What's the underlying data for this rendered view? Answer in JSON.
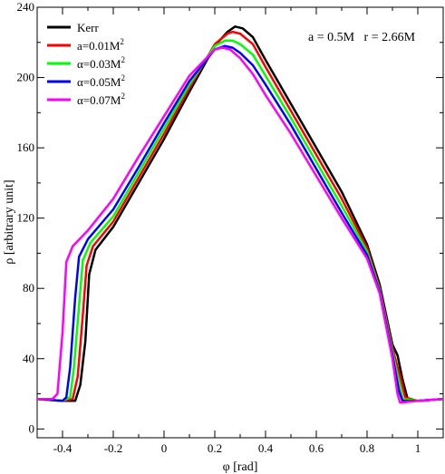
{
  "chart_data": {
    "type": "line",
    "xlabel": "φ [rad]",
    "ylabel": "ρ [arbitrary unit]",
    "xlim": [
      -0.5,
      1.1
    ],
    "ylim": [
      -5,
      240
    ],
    "xticks": [
      -0.4,
      -0.2,
      0,
      0.2,
      0.4,
      0.6,
      0.8,
      1
    ],
    "xtick_labels": [
      "-0.4",
      "-0.2",
      "0",
      "0.2",
      "0.4",
      "0.6",
      "0.8",
      "1"
    ],
    "yticks": [
      0,
      40,
      80,
      120,
      160,
      200,
      240
    ],
    "ytick_labels": [
      "0",
      "40",
      "80",
      "120",
      "160",
      "200",
      "240"
    ],
    "grid": false,
    "legend_position": "top-left",
    "annotation": "a = 0.5M   r = 2.66M",
    "series": [
      {
        "name": "Kerr",
        "name_sup": "",
        "color": "#000000",
        "points": [
          [
            -0.5,
            17
          ],
          [
            -0.4,
            16
          ],
          [
            -0.35,
            16
          ],
          [
            -0.33,
            25
          ],
          [
            -0.31,
            50
          ],
          [
            -0.295,
            88
          ],
          [
            -0.27,
            102
          ],
          [
            -0.2,
            115
          ],
          [
            -0.1,
            140
          ],
          [
            0,
            165
          ],
          [
            0.1,
            192
          ],
          [
            0.2,
            218
          ],
          [
            0.25,
            226
          ],
          [
            0.28,
            229
          ],
          [
            0.31,
            228
          ],
          [
            0.35,
            223
          ],
          [
            0.4,
            210
          ],
          [
            0.5,
            185
          ],
          [
            0.6,
            160
          ],
          [
            0.7,
            135
          ],
          [
            0.8,
            105
          ],
          [
            0.85,
            82
          ],
          [
            0.9,
            48
          ],
          [
            0.92,
            42
          ],
          [
            0.94,
            28
          ],
          [
            0.96,
            17
          ],
          [
            1.0,
            16
          ],
          [
            1.1,
            17
          ]
        ]
      },
      {
        "name": "a=0.01M",
        "name_sup": "2",
        "color": "#ff0000",
        "points": [
          [
            -0.5,
            17
          ],
          [
            -0.4,
            16
          ],
          [
            -0.36,
            17
          ],
          [
            -0.34,
            30
          ],
          [
            -0.32,
            65
          ],
          [
            -0.305,
            93
          ],
          [
            -0.28,
            104
          ],
          [
            -0.2,
            118
          ],
          [
            -0.1,
            143
          ],
          [
            0,
            168
          ],
          [
            0.1,
            194
          ],
          [
            0.2,
            219
          ],
          [
            0.25,
            225
          ],
          [
            0.27,
            226
          ],
          [
            0.3,
            225
          ],
          [
            0.35,
            219
          ],
          [
            0.4,
            206
          ],
          [
            0.5,
            181
          ],
          [
            0.6,
            156
          ],
          [
            0.7,
            131
          ],
          [
            0.8,
            103
          ],
          [
            0.85,
            80
          ],
          [
            0.9,
            46
          ],
          [
            0.93,
            30
          ],
          [
            0.95,
            18
          ],
          [
            1.0,
            16
          ],
          [
            1.1,
            17
          ]
        ]
      },
      {
        "name": "α=0.03M",
        "name_sup": "2",
        "color": "#00ff00",
        "points": [
          [
            -0.5,
            17
          ],
          [
            -0.4,
            16
          ],
          [
            -0.37,
            18
          ],
          [
            -0.355,
            35
          ],
          [
            -0.335,
            70
          ],
          [
            -0.32,
            96
          ],
          [
            -0.29,
            106
          ],
          [
            -0.2,
            121
          ],
          [
            -0.1,
            146
          ],
          [
            0,
            171
          ],
          [
            0.1,
            196
          ],
          [
            0.2,
            218
          ],
          [
            0.24,
            221
          ],
          [
            0.27,
            221
          ],
          [
            0.3,
            219
          ],
          [
            0.35,
            213
          ],
          [
            0.4,
            201
          ],
          [
            0.5,
            177
          ],
          [
            0.6,
            152
          ],
          [
            0.7,
            127
          ],
          [
            0.8,
            101
          ],
          [
            0.85,
            79
          ],
          [
            0.9,
            44
          ],
          [
            0.93,
            24
          ],
          [
            0.94,
            17
          ],
          [
            1.0,
            16
          ],
          [
            1.1,
            17
          ]
        ]
      },
      {
        "name": "α=0.05M",
        "name_sup": "2",
        "color": "#0000ff",
        "points": [
          [
            -0.5,
            17
          ],
          [
            -0.4,
            16
          ],
          [
            -0.385,
            18
          ],
          [
            -0.37,
            35
          ],
          [
            -0.35,
            75
          ],
          [
            -0.335,
            98
          ],
          [
            -0.3,
            108
          ],
          [
            -0.2,
            125
          ],
          [
            -0.1,
            149
          ],
          [
            0,
            174
          ],
          [
            0.1,
            198
          ],
          [
            0.2,
            216
          ],
          [
            0.24,
            218
          ],
          [
            0.27,
            217
          ],
          [
            0.3,
            214
          ],
          [
            0.35,
            207
          ],
          [
            0.4,
            196
          ],
          [
            0.5,
            173
          ],
          [
            0.6,
            148
          ],
          [
            0.7,
            123
          ],
          [
            0.8,
            99
          ],
          [
            0.85,
            78
          ],
          [
            0.9,
            42
          ],
          [
            0.925,
            22
          ],
          [
            0.94,
            16
          ],
          [
            1.0,
            16
          ],
          [
            1.1,
            17
          ]
        ]
      },
      {
        "name": "α=0.07M",
        "name_sup": "2",
        "color": "#ff00ff",
        "points": [
          [
            -0.5,
            17
          ],
          [
            -0.44,
            17
          ],
          [
            -0.42,
            20
          ],
          [
            -0.4,
            55
          ],
          [
            -0.385,
            95
          ],
          [
            -0.36,
            104
          ],
          [
            -0.3,
            113
          ],
          [
            -0.2,
            131
          ],
          [
            -0.1,
            155
          ],
          [
            0,
            178
          ],
          [
            0.1,
            201
          ],
          [
            0.2,
            216
          ],
          [
            0.23,
            217
          ],
          [
            0.26,
            216
          ],
          [
            0.3,
            211
          ],
          [
            0.35,
            202
          ],
          [
            0.4,
            190
          ],
          [
            0.5,
            168
          ],
          [
            0.6,
            144
          ],
          [
            0.7,
            120
          ],
          [
            0.8,
            97
          ],
          [
            0.85,
            77
          ],
          [
            0.9,
            40
          ],
          [
            0.92,
            20
          ],
          [
            0.93,
            15
          ],
          [
            1.0,
            16
          ],
          [
            1.1,
            17
          ]
        ]
      }
    ]
  }
}
